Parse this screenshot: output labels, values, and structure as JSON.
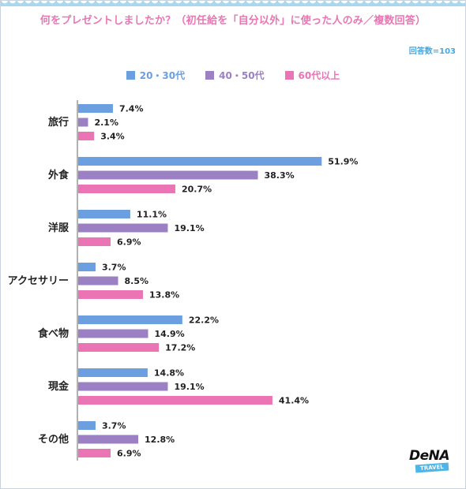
{
  "title": "何をプレゼントしましたか？（初任給を「自分以外」に使った人のみ／複数回答）",
  "sample_size": "回答数=103",
  "logo": {
    "main": "DeNA",
    "tag": "TRAVEL"
  },
  "colors": {
    "s1": "#6b9fe0",
    "s2": "#9b80c4",
    "s3": "#eb74b5",
    "title": "#e876b3",
    "axis": "#666666"
  },
  "chart_data": {
    "type": "bar",
    "orientation": "horizontal",
    "categories": [
      "旅行",
      "外食",
      "洋服",
      "アクセサリー",
      "食べ物",
      "現金",
      "その他"
    ],
    "series": [
      {
        "name": "20・30代",
        "values": [
          7.4,
          51.9,
          11.1,
          3.7,
          22.2,
          14.8,
          3.7
        ],
        "labels": [
          "7.4%",
          "51.9%",
          "11.1%",
          "3.7%",
          "22.2%",
          "14.8%",
          "3.7%"
        ]
      },
      {
        "name": "40・50代",
        "values": [
          2.1,
          38.3,
          19.1,
          8.5,
          14.9,
          19.1,
          12.8
        ],
        "labels": [
          "2.1%",
          "38.3%",
          "19.1%",
          "8.5%",
          "14.9%",
          "19.1%",
          "12.8%"
        ]
      },
      {
        "name": "60代以上",
        "values": [
          3.4,
          20.7,
          6.9,
          13.8,
          17.2,
          41.4,
          6.9
        ],
        "labels": [
          "3.4%",
          "20.7%",
          "6.9%",
          "13.8%",
          "17.2%",
          "41.4%",
          "6.9%"
        ]
      }
    ],
    "unit": "%",
    "legend_position": "top-center",
    "grid": false
  }
}
